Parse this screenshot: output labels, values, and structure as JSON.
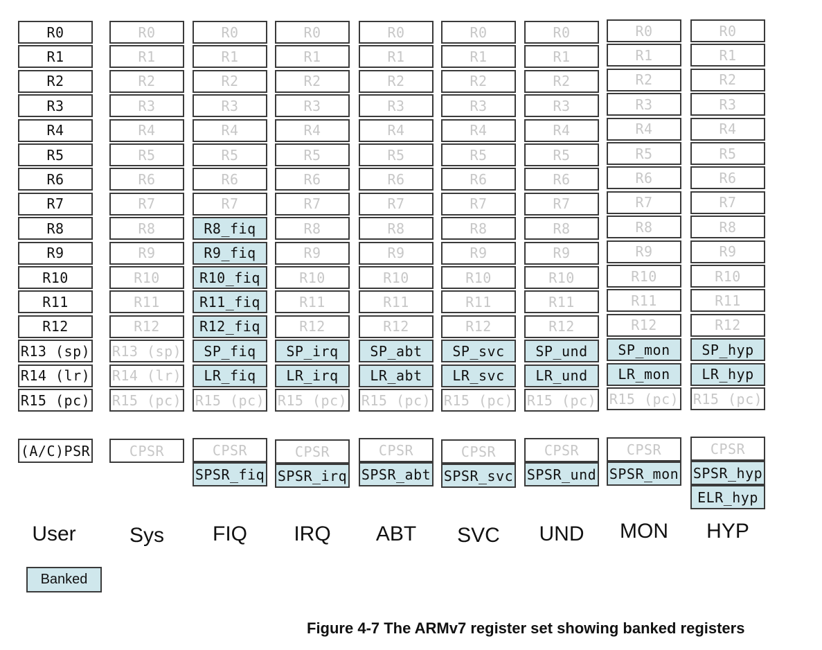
{
  "figure": {
    "caption": "Figure 4-7 The ARMv7 register set showing banked registers",
    "legend": {
      "banked_label": "Banked"
    }
  },
  "colors": {
    "banked": "#cfe7ec",
    "shared_text": "#c7c7c7",
    "own_text": "#111111",
    "border": "#3a3a3a"
  },
  "modes": [
    {
      "name": "User",
      "registers": [
        {
          "label": "R0",
          "kind": "own"
        },
        {
          "label": "R1",
          "kind": "own"
        },
        {
          "label": "R2",
          "kind": "own"
        },
        {
          "label": "R3",
          "kind": "own"
        },
        {
          "label": "R4",
          "kind": "own"
        },
        {
          "label": "R5",
          "kind": "own"
        },
        {
          "label": "R6",
          "kind": "own"
        },
        {
          "label": "R7",
          "kind": "own"
        },
        {
          "label": "R8",
          "kind": "own"
        },
        {
          "label": "R9",
          "kind": "own"
        },
        {
          "label": "R10",
          "kind": "own"
        },
        {
          "label": "R11",
          "kind": "own"
        },
        {
          "label": "R12",
          "kind": "own"
        },
        {
          "label": "R13 (sp)",
          "kind": "own"
        },
        {
          "label": "R14 (lr)",
          "kind": "own"
        },
        {
          "label": "R15 (pc)",
          "kind": "own"
        }
      ],
      "status": [
        {
          "label": "(A/C)PSR",
          "kind": "own"
        }
      ]
    },
    {
      "name": "Sys",
      "registers": [
        {
          "label": "R0",
          "kind": "shared"
        },
        {
          "label": "R1",
          "kind": "shared"
        },
        {
          "label": "R2",
          "kind": "shared"
        },
        {
          "label": "R3",
          "kind": "shared"
        },
        {
          "label": "R4",
          "kind": "shared"
        },
        {
          "label": "R5",
          "kind": "shared"
        },
        {
          "label": "R6",
          "kind": "shared"
        },
        {
          "label": "R7",
          "kind": "shared"
        },
        {
          "label": "R8",
          "kind": "shared"
        },
        {
          "label": "R9",
          "kind": "shared"
        },
        {
          "label": "R10",
          "kind": "shared"
        },
        {
          "label": "R11",
          "kind": "shared"
        },
        {
          "label": "R12",
          "kind": "shared"
        },
        {
          "label": "R13 (sp)",
          "kind": "shared"
        },
        {
          "label": "R14 (lr)",
          "kind": "shared"
        },
        {
          "label": "R15 (pc)",
          "kind": "shared"
        }
      ],
      "status": [
        {
          "label": "CPSR",
          "kind": "shared"
        }
      ]
    },
    {
      "name": "FIQ",
      "registers": [
        {
          "label": "R0",
          "kind": "shared"
        },
        {
          "label": "R1",
          "kind": "shared"
        },
        {
          "label": "R2",
          "kind": "shared"
        },
        {
          "label": "R3",
          "kind": "shared"
        },
        {
          "label": "R4",
          "kind": "shared"
        },
        {
          "label": "R5",
          "kind": "shared"
        },
        {
          "label": "R6",
          "kind": "shared"
        },
        {
          "label": "R7",
          "kind": "shared"
        },
        {
          "label": "R8_fiq",
          "kind": "banked"
        },
        {
          "label": "R9_fiq",
          "kind": "banked"
        },
        {
          "label": "R10_fiq",
          "kind": "banked"
        },
        {
          "label": "R11_fiq",
          "kind": "banked"
        },
        {
          "label": "R12_fiq",
          "kind": "banked"
        },
        {
          "label": "SP_fiq",
          "kind": "banked"
        },
        {
          "label": "LR_fiq",
          "kind": "banked"
        },
        {
          "label": "R15 (pc)",
          "kind": "shared"
        }
      ],
      "status": [
        {
          "label": "CPSR",
          "kind": "shared"
        },
        {
          "label": "SPSR_fiq",
          "kind": "banked"
        }
      ]
    },
    {
      "name": "IRQ",
      "registers": [
        {
          "label": "R0",
          "kind": "shared"
        },
        {
          "label": "R1",
          "kind": "shared"
        },
        {
          "label": "R2",
          "kind": "shared"
        },
        {
          "label": "R3",
          "kind": "shared"
        },
        {
          "label": "R4",
          "kind": "shared"
        },
        {
          "label": "R5",
          "kind": "shared"
        },
        {
          "label": "R6",
          "kind": "shared"
        },
        {
          "label": "R7",
          "kind": "shared"
        },
        {
          "label": "R8",
          "kind": "shared"
        },
        {
          "label": "R9",
          "kind": "shared"
        },
        {
          "label": "R10",
          "kind": "shared"
        },
        {
          "label": "R11",
          "kind": "shared"
        },
        {
          "label": "R12",
          "kind": "shared"
        },
        {
          "label": "SP_irq",
          "kind": "banked"
        },
        {
          "label": "LR_irq",
          "kind": "banked"
        },
        {
          "label": "R15 (pc)",
          "kind": "shared"
        }
      ],
      "status": [
        {
          "label": "CPSR",
          "kind": "shared"
        },
        {
          "label": "SPSR_irq",
          "kind": "banked"
        }
      ]
    },
    {
      "name": "ABT",
      "registers": [
        {
          "label": "R0",
          "kind": "shared"
        },
        {
          "label": "R1",
          "kind": "shared"
        },
        {
          "label": "R2",
          "kind": "shared"
        },
        {
          "label": "R3",
          "kind": "shared"
        },
        {
          "label": "R4",
          "kind": "shared"
        },
        {
          "label": "R5",
          "kind": "shared"
        },
        {
          "label": "R6",
          "kind": "shared"
        },
        {
          "label": "R7",
          "kind": "shared"
        },
        {
          "label": "R8",
          "kind": "shared"
        },
        {
          "label": "R9",
          "kind": "shared"
        },
        {
          "label": "R10",
          "kind": "shared"
        },
        {
          "label": "R11",
          "kind": "shared"
        },
        {
          "label": "R12",
          "kind": "shared"
        },
        {
          "label": "SP_abt",
          "kind": "banked"
        },
        {
          "label": "LR_abt",
          "kind": "banked"
        },
        {
          "label": "R15 (pc)",
          "kind": "shared"
        }
      ],
      "status": [
        {
          "label": "CPSR",
          "kind": "shared"
        },
        {
          "label": "SPSR_abt",
          "kind": "banked"
        }
      ]
    },
    {
      "name": "SVC",
      "registers": [
        {
          "label": "R0",
          "kind": "shared"
        },
        {
          "label": "R1",
          "kind": "shared"
        },
        {
          "label": "R2",
          "kind": "shared"
        },
        {
          "label": "R3",
          "kind": "shared"
        },
        {
          "label": "R4",
          "kind": "shared"
        },
        {
          "label": "R5",
          "kind": "shared"
        },
        {
          "label": "R6",
          "kind": "shared"
        },
        {
          "label": "R7",
          "kind": "shared"
        },
        {
          "label": "R8",
          "kind": "shared"
        },
        {
          "label": "R9",
          "kind": "shared"
        },
        {
          "label": "R10",
          "kind": "shared"
        },
        {
          "label": "R11",
          "kind": "shared"
        },
        {
          "label": "R12",
          "kind": "shared"
        },
        {
          "label": "SP_svc",
          "kind": "banked"
        },
        {
          "label": "LR_svc",
          "kind": "banked"
        },
        {
          "label": "R15 (pc)",
          "kind": "shared"
        }
      ],
      "status": [
        {
          "label": "CPSR",
          "kind": "shared"
        },
        {
          "label": "SPSR_svc",
          "kind": "banked"
        }
      ]
    },
    {
      "name": "UND",
      "registers": [
        {
          "label": "R0",
          "kind": "shared"
        },
        {
          "label": "R1",
          "kind": "shared"
        },
        {
          "label": "R2",
          "kind": "shared"
        },
        {
          "label": "R3",
          "kind": "shared"
        },
        {
          "label": "R4",
          "kind": "shared"
        },
        {
          "label": "R5",
          "kind": "shared"
        },
        {
          "label": "R6",
          "kind": "shared"
        },
        {
          "label": "R7",
          "kind": "shared"
        },
        {
          "label": "R8",
          "kind": "shared"
        },
        {
          "label": "R9",
          "kind": "shared"
        },
        {
          "label": "R10",
          "kind": "shared"
        },
        {
          "label": "R11",
          "kind": "shared"
        },
        {
          "label": "R12",
          "kind": "shared"
        },
        {
          "label": "SP_und",
          "kind": "banked"
        },
        {
          "label": "LR_und",
          "kind": "banked"
        },
        {
          "label": "R15 (pc)",
          "kind": "shared"
        }
      ],
      "status": [
        {
          "label": "CPSR",
          "kind": "shared"
        },
        {
          "label": "SPSR_und",
          "kind": "banked"
        }
      ]
    },
    {
      "name": "MON",
      "registers": [
        {
          "label": "R0",
          "kind": "shared"
        },
        {
          "label": "R1",
          "kind": "shared"
        },
        {
          "label": "R2",
          "kind": "shared"
        },
        {
          "label": "R3",
          "kind": "shared"
        },
        {
          "label": "R4",
          "kind": "shared"
        },
        {
          "label": "R5",
          "kind": "shared"
        },
        {
          "label": "R6",
          "kind": "shared"
        },
        {
          "label": "R7",
          "kind": "shared"
        },
        {
          "label": "R8",
          "kind": "shared"
        },
        {
          "label": "R9",
          "kind": "shared"
        },
        {
          "label": "R10",
          "kind": "shared"
        },
        {
          "label": "R11",
          "kind": "shared"
        },
        {
          "label": "R12",
          "kind": "shared"
        },
        {
          "label": "SP_mon",
          "kind": "banked"
        },
        {
          "label": "LR_mon",
          "kind": "banked"
        },
        {
          "label": "R15 (pc)",
          "kind": "shared"
        }
      ],
      "status": [
        {
          "label": "CPSR",
          "kind": "shared"
        },
        {
          "label": "SPSR_mon",
          "kind": "banked"
        }
      ]
    },
    {
      "name": "HYP",
      "registers": [
        {
          "label": "R0",
          "kind": "shared"
        },
        {
          "label": "R1",
          "kind": "shared"
        },
        {
          "label": "R2",
          "kind": "shared"
        },
        {
          "label": "R3",
          "kind": "shared"
        },
        {
          "label": "R4",
          "kind": "shared"
        },
        {
          "label": "R5",
          "kind": "shared"
        },
        {
          "label": "R6",
          "kind": "shared"
        },
        {
          "label": "R7",
          "kind": "shared"
        },
        {
          "label": "R8",
          "kind": "shared"
        },
        {
          "label": "R9",
          "kind": "shared"
        },
        {
          "label": "R10",
          "kind": "shared"
        },
        {
          "label": "R11",
          "kind": "shared"
        },
        {
          "label": "R12",
          "kind": "shared"
        },
        {
          "label": "SP_hyp",
          "kind": "banked"
        },
        {
          "label": "LR_hyp",
          "kind": "banked"
        },
        {
          "label": "R15 (pc)",
          "kind": "shared"
        }
      ],
      "status": [
        {
          "label": "CPSR",
          "kind": "shared"
        },
        {
          "label": "SPSR_hyp",
          "kind": "banked"
        },
        {
          "label": "ELR_hyp",
          "kind": "banked"
        }
      ]
    }
  ]
}
